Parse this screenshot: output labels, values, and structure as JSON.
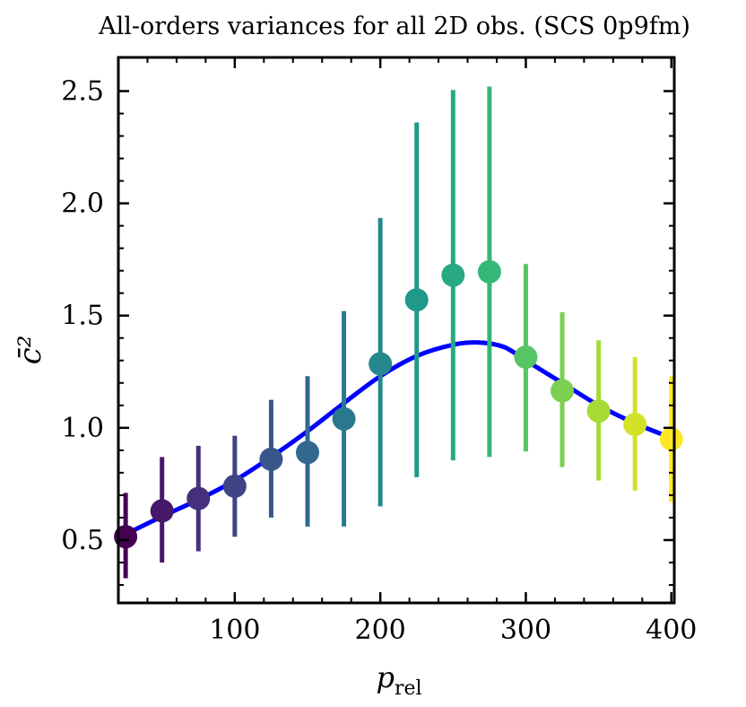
{
  "chart_data": {
    "type": "scatter",
    "title": "All-orders variances for all 2D obs. (SCS 0p9fm)",
    "xlabel": "p",
    "xlabel_subscript": "rel",
    "ylabel": "c̄²",
    "xlim": [
      20,
      402
    ],
    "ylim": [
      0.22,
      2.65
    ],
    "xticks": [
      100,
      200,
      300,
      400
    ],
    "yticks": [
      0.5,
      1.0,
      1.5,
      2.0,
      2.5
    ],
    "xtick_labels": [
      "100",
      "200",
      "300",
      "400"
    ],
    "ytick_labels": [
      "0.5",
      "1.0",
      "1.5",
      "2.0",
      "2.5"
    ],
    "grid": false,
    "points": {
      "x": [
        25,
        50,
        75,
        100,
        125,
        150,
        175,
        200,
        225,
        250,
        275,
        300,
        325,
        350,
        375,
        400
      ],
      "y": [
        0.515,
        0.63,
        0.685,
        0.74,
        0.86,
        0.89,
        1.04,
        1.285,
        1.57,
        1.68,
        1.695,
        1.315,
        1.165,
        1.075,
        1.015,
        0.95
      ],
      "y_low": [
        0.33,
        0.4,
        0.45,
        0.515,
        0.6,
        0.56,
        0.56,
        0.65,
        0.78,
        0.855,
        0.87,
        0.895,
        0.825,
        0.765,
        0.72,
        0.67
      ],
      "y_high": [
        0.71,
        0.87,
        0.92,
        0.965,
        1.125,
        1.23,
        1.52,
        1.935,
        2.36,
        2.505,
        2.52,
        1.73,
        1.515,
        1.39,
        1.315,
        1.23
      ],
      "colormap": "viridis"
    },
    "curve": {
      "color": "#0000ff",
      "x": [
        20,
        50,
        75,
        100,
        125,
        150,
        175,
        200,
        225,
        250,
        268,
        285,
        300,
        325,
        350,
        375,
        400
      ],
      "y": [
        0.51,
        0.605,
        0.68,
        0.765,
        0.87,
        0.985,
        1.11,
        1.23,
        1.32,
        1.37,
        1.38,
        1.36,
        1.3,
        1.2,
        1.1,
        1.02,
        0.955
      ]
    }
  }
}
